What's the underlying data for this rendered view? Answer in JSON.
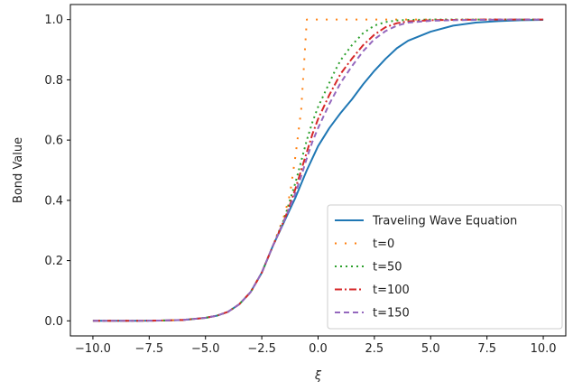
{
  "chart_data": {
    "type": "line",
    "title": "",
    "xlabel": "ξ",
    "ylabel": "Bond Value",
    "xlim": [
      -11,
      11
    ],
    "ylim": [
      -0.05,
      1.05
    ],
    "xticks": [
      -10,
      -7.5,
      -5,
      -2.5,
      0,
      2.5,
      5,
      7.5,
      10
    ],
    "xtick_labels": [
      "−10.0",
      "−7.5",
      "−5.0",
      "−2.5",
      "0.0",
      "2.5",
      "5.0",
      "7.5",
      "10.0"
    ],
    "yticks": [
      0,
      0.2,
      0.4,
      0.6,
      0.8,
      1.0
    ],
    "ytick_labels": [
      "0.0",
      "0.2",
      "0.4",
      "0.6",
      "0.8",
      "1.0"
    ],
    "grid": false,
    "legend_position": "lower-right",
    "x": [
      -10,
      -9,
      -8,
      -7,
      -6,
      -5,
      -4.5,
      -4,
      -3.5,
      -3,
      -2.5,
      -2,
      -1.5,
      -1.25,
      -1,
      -0.75,
      -0.5,
      -0.25,
      0,
      0.25,
      0.5,
      0.75,
      1,
      1.5,
      2,
      2.5,
      3,
      3.5,
      4,
      5,
      6,
      7,
      8,
      9,
      10
    ],
    "series": [
      {
        "name": "Traveling Wave Equation",
        "color": "#1f77b4",
        "dash": "solid",
        "values": [
          0.0001,
          0.0001,
          0.0003,
          0.001,
          0.003,
          0.01,
          0.017,
          0.03,
          0.055,
          0.095,
          0.16,
          0.25,
          0.33,
          0.37,
          0.41,
          0.455,
          0.5,
          0.54,
          0.58,
          0.61,
          0.64,
          0.665,
          0.69,
          0.735,
          0.785,
          0.83,
          0.87,
          0.905,
          0.93,
          0.96,
          0.98,
          0.99,
          0.995,
          0.998,
          0.999
        ]
      },
      {
        "name": "t=0",
        "color": "#ff7f0e",
        "dash": "dotted-sparse",
        "values": [
          0.0001,
          0.0001,
          0.0003,
          0.001,
          0.003,
          0.01,
          0.017,
          0.03,
          0.055,
          0.095,
          0.16,
          0.25,
          0.35,
          0.42,
          0.55,
          0.7,
          1.0,
          1.0,
          1.0,
          1.0,
          1.0,
          1.0,
          1.0,
          1.0,
          1.0,
          1.0,
          1.0,
          1.0,
          1.0,
          1.0,
          1.0,
          1.0,
          1.0,
          1.0,
          1.0
        ]
      },
      {
        "name": "t=50",
        "color": "#2ca02c",
        "dash": "dotted",
        "values": [
          0.0001,
          0.0001,
          0.0003,
          0.001,
          0.003,
          0.01,
          0.017,
          0.03,
          0.055,
          0.095,
          0.16,
          0.25,
          0.34,
          0.4,
          0.46,
          0.53,
          0.6,
          0.66,
          0.71,
          0.75,
          0.79,
          0.83,
          0.865,
          0.915,
          0.955,
          0.98,
          0.992,
          0.997,
          0.999,
          1.0,
          1.0,
          1.0,
          1.0,
          1.0,
          1.0
        ]
      },
      {
        "name": "t=100",
        "color": "#d62728",
        "dash": "dashdot",
        "values": [
          0.0001,
          0.0001,
          0.0003,
          0.001,
          0.003,
          0.01,
          0.017,
          0.03,
          0.055,
          0.095,
          0.16,
          0.25,
          0.335,
          0.385,
          0.44,
          0.5,
          0.56,
          0.62,
          0.67,
          0.71,
          0.75,
          0.785,
          0.82,
          0.87,
          0.915,
          0.95,
          0.975,
          0.988,
          0.994,
          0.998,
          0.999,
          1.0,
          1.0,
          1.0,
          1.0
        ]
      },
      {
        "name": "t=150",
        "color": "#9467bd",
        "dash": "dashed",
        "values": [
          0.0001,
          0.0001,
          0.0003,
          0.001,
          0.003,
          0.01,
          0.017,
          0.03,
          0.055,
          0.095,
          0.16,
          0.25,
          0.333,
          0.378,
          0.425,
          0.48,
          0.54,
          0.595,
          0.64,
          0.68,
          0.72,
          0.755,
          0.79,
          0.845,
          0.895,
          0.935,
          0.962,
          0.98,
          0.99,
          0.996,
          0.998,
          0.999,
          1.0,
          1.0,
          1.0
        ]
      }
    ]
  }
}
